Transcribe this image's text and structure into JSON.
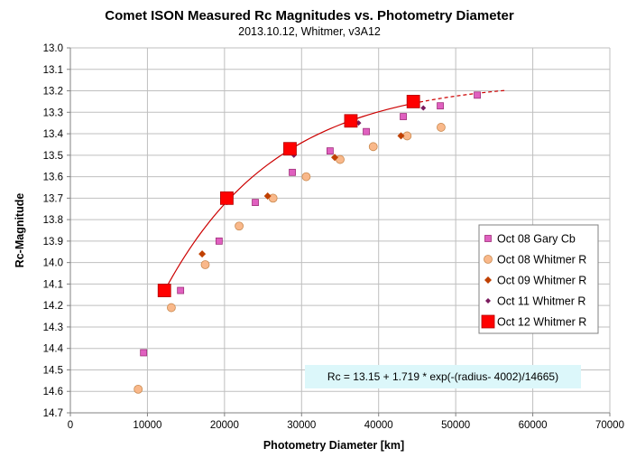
{
  "chart_data": {
    "type": "scatter",
    "title": "Comet ISON Measured Rc Magnitudes vs. Photometry Diameter",
    "subtitle": "2013.10.12,  Whitmer, v3A12",
    "xlabel": "Photometry Diameter  [km]",
    "ylabel": "Rc-Magnitude",
    "xlim": [
      0,
      70000
    ],
    "ylim": [
      13.0,
      14.7
    ],
    "y_inverted": true,
    "x_ticks": [
      0,
      10000,
      20000,
      30000,
      40000,
      50000,
      60000,
      70000
    ],
    "y_ticks": [
      13.0,
      13.1,
      13.2,
      13.3,
      13.4,
      13.5,
      13.6,
      13.7,
      13.8,
      13.9,
      14.0,
      14.1,
      14.2,
      14.3,
      14.4,
      14.5,
      14.6,
      14.7
    ],
    "y_tick_labels": [
      "13.0",
      "13.1",
      "13.2",
      "13.3",
      "13.4",
      "13.5",
      "13.6",
      "13.7",
      "13.8",
      "13.9",
      "14.0",
      "14.1",
      "14.2",
      "14.3",
      "14.4",
      "14.5",
      "14.6",
      "14.7"
    ],
    "grid": true,
    "legend_position": "right",
    "series": [
      {
        "name": "Oct 08 Gary Cb",
        "marker": "square-small",
        "color": "#e060c0",
        "x": [
          9500,
          14300,
          19300,
          24000,
          28800,
          33700,
          38400,
          43200,
          48000,
          52800
        ],
        "y": [
          14.42,
          14.13,
          13.9,
          13.72,
          13.58,
          13.48,
          13.39,
          13.32,
          13.27,
          13.22
        ]
      },
      {
        "name": "Oct 08 Whitmer R",
        "marker": "circle",
        "color": "#f9b88a",
        "x": [
          8800,
          13100,
          17500,
          21900,
          26300,
          30600,
          35000,
          39300,
          43700,
          48100
        ],
        "y": [
          14.59,
          14.21,
          14.01,
          13.83,
          13.7,
          13.6,
          13.52,
          13.46,
          13.41,
          13.37
        ]
      },
      {
        "name": "Oct 09 Whitmer R",
        "marker": "diamond",
        "color": "#c04000",
        "x": [
          17100,
          25600,
          34300,
          42900
        ],
        "y": [
          13.96,
          13.69,
          13.51,
          13.41
        ]
      },
      {
        "name": "Oct 11 Whitmer R",
        "marker": "diamond-small",
        "color": "#7a1b5e",
        "x": [
          20300,
          29000,
          37400,
          45800
        ],
        "y": [
          13.72,
          13.5,
          13.35,
          13.28
        ]
      },
      {
        "name": "Oct 12 Whitmer R",
        "marker": "square-large",
        "color": "#ff0000",
        "x": [
          12200,
          20300,
          28500,
          36400,
          44500
        ],
        "y": [
          14.13,
          13.7,
          13.47,
          13.34,
          13.25
        ]
      }
    ],
    "fit": {
      "label": "Rc = 13.15 + 1.719  * exp(-(radius- 4002)/14665)",
      "a": 13.15,
      "b": 1.719,
      "x0": 4002,
      "scale": 14665,
      "solid_range": [
        12200,
        44500
      ],
      "dashed_range": [
        44500,
        56500
      ],
      "color": "#cc0000"
    }
  }
}
